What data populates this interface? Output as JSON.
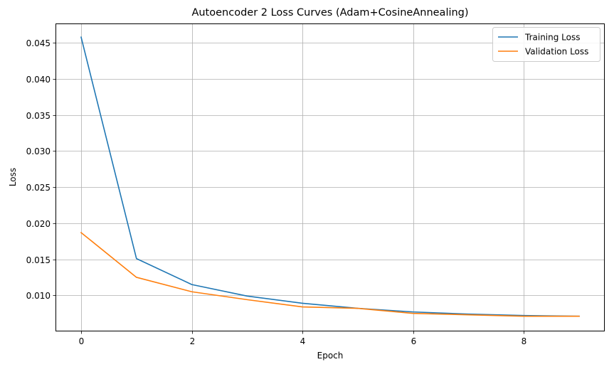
{
  "chart_data": {
    "type": "line",
    "title": "Autoencoder 2 Loss Curves (Adam+CosineAnnealing)",
    "xlabel": "Epoch",
    "ylabel": "Loss",
    "x": [
      0,
      1,
      2,
      3,
      4,
      5,
      6,
      7,
      8,
      9
    ],
    "series": [
      {
        "name": "Training Loss",
        "color": "#1f77b4",
        "values": [
          0.0458,
          0.0151,
          0.0115,
          0.0099,
          0.0089,
          0.0082,
          0.0077,
          0.0074,
          0.0072,
          0.0071
        ]
      },
      {
        "name": "Validation Loss",
        "color": "#ff7f0e",
        "values": [
          0.0187,
          0.0125,
          0.0105,
          0.0094,
          0.0084,
          0.0082,
          0.0075,
          0.0073,
          0.0071,
          0.0071
        ]
      }
    ],
    "xlim": [
      -0.45,
      9.45
    ],
    "ylim": [
      0.0051,
      0.0476
    ],
    "xticks": [
      0,
      2,
      4,
      6,
      8
    ],
    "xtick_labels": [
      "0",
      "2",
      "4",
      "6",
      "8"
    ],
    "yticks": [
      0.01,
      0.015,
      0.02,
      0.025,
      0.03,
      0.035,
      0.04,
      0.045
    ],
    "ytick_labels": [
      "0.010",
      "0.015",
      "0.020",
      "0.025",
      "0.030",
      "0.035",
      "0.040",
      "0.045"
    ],
    "grid": true,
    "legend_position": "top-right"
  }
}
